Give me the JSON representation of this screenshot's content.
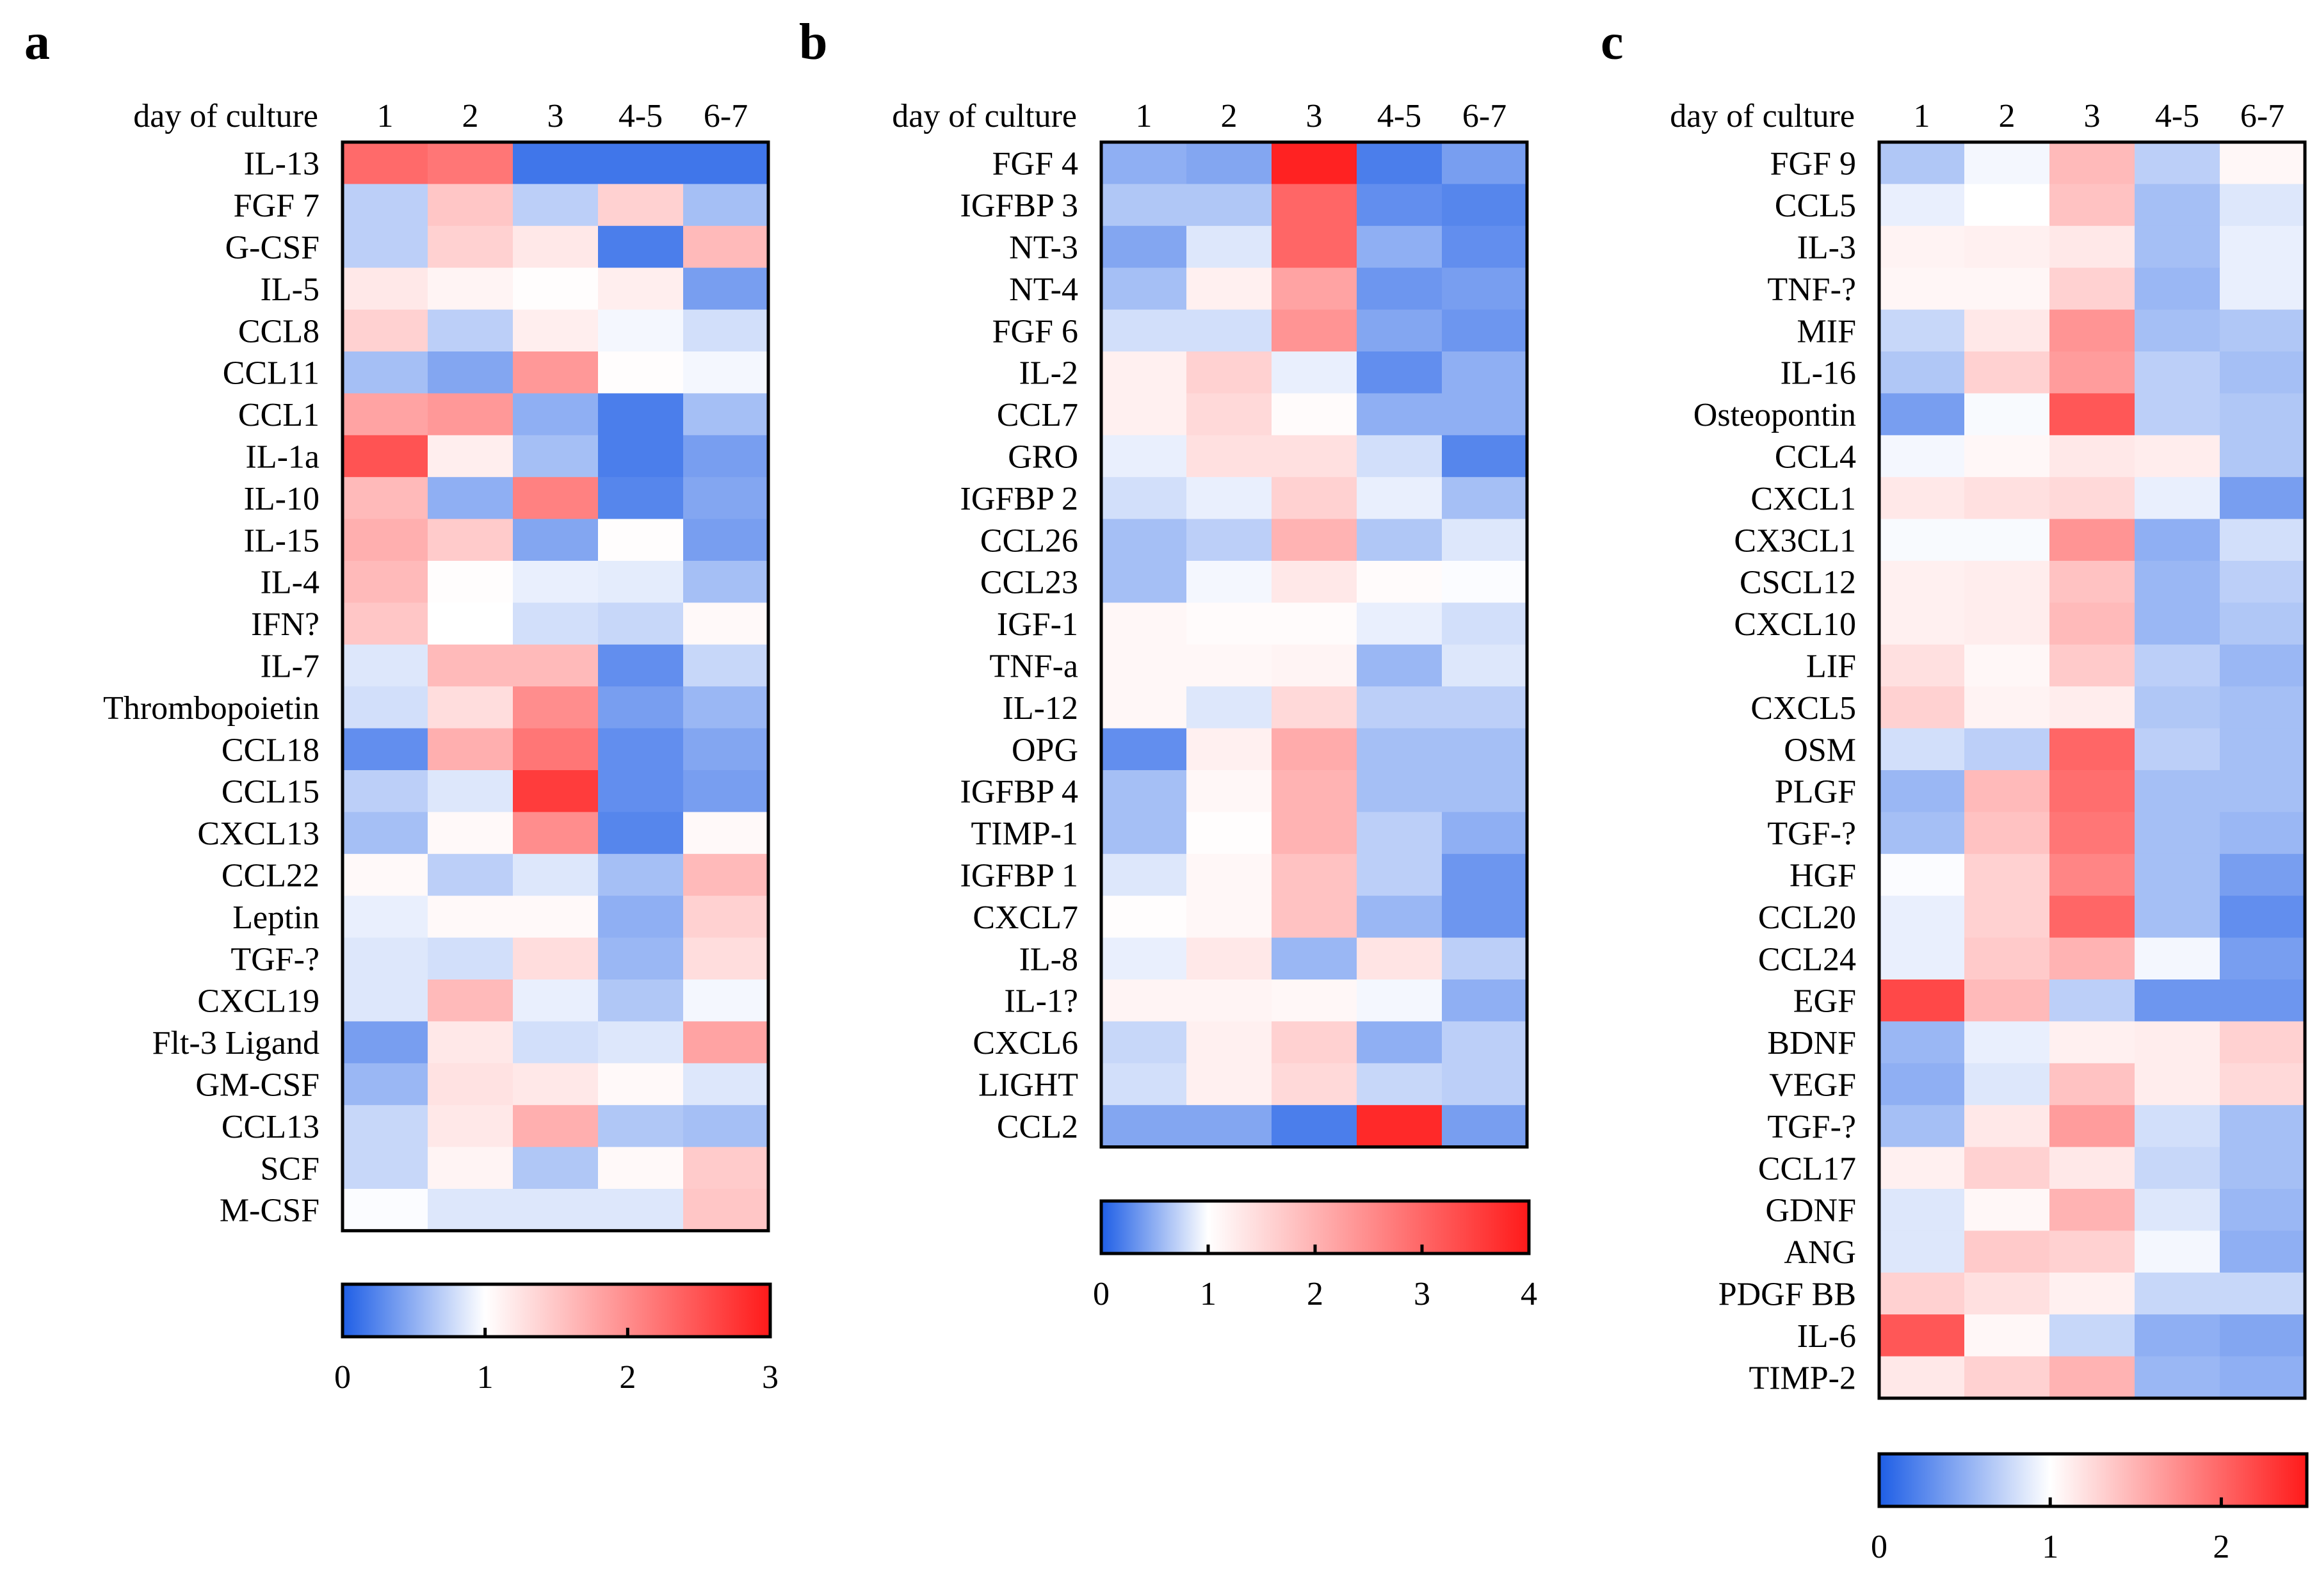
{
  "chart_data": [
    {
      "type": "heatmap",
      "panel": "a",
      "title": "",
      "xlabel": "day of culture",
      "x": [
        "1",
        "2",
        "3",
        "4-5",
        "6-7"
      ],
      "rows": [
        "IL-13",
        "FGF 7",
        "G-CSF",
        "IL-5",
        "CCL8",
        "CCL11",
        "CCL1",
        "IL-1a",
        "IL-10",
        "IL-15",
        "IL-4",
        "IFN?",
        "IL-7",
        "Thrombopoietin",
        "CCL18",
        "CCL15",
        "CXCL13",
        "CCL22",
        "Leptin",
        "TGF-?",
        "CXCL19",
        "Flt-3 Ligand",
        "GM-CSF",
        "CCL13",
        "SCF",
        "M-CSF"
      ],
      "values": [
        [
          2.3,
          2.2,
          0.15,
          0.15,
          0.15
        ],
        [
          0.7,
          1.5,
          0.7,
          1.4,
          0.6
        ],
        [
          0.7,
          1.4,
          1.2,
          0.2,
          1.6
        ],
        [
          1.2,
          1.1,
          1.02,
          1.15,
          0.4
        ],
        [
          1.4,
          0.7,
          1.15,
          0.95,
          0.8
        ],
        [
          0.6,
          0.45,
          1.9,
          1.02,
          0.95
        ],
        [
          1.8,
          1.9,
          0.5,
          0.2,
          0.6
        ],
        [
          2.5,
          1.15,
          0.6,
          0.2,
          0.4
        ],
        [
          1.6,
          0.5,
          2.1,
          0.25,
          0.45
        ],
        [
          1.7,
          1.45,
          0.45,
          1.02,
          0.4
        ],
        [
          1.6,
          1.02,
          0.9,
          0.88,
          0.6
        ],
        [
          1.5,
          1.0,
          0.8,
          0.75,
          1.05
        ],
        [
          0.85,
          1.6,
          1.6,
          0.3,
          0.75
        ],
        [
          0.8,
          1.3,
          2.0,
          0.4,
          0.55
        ],
        [
          0.3,
          1.7,
          2.2,
          0.3,
          0.45
        ],
        [
          0.7,
          0.85,
          2.7,
          0.3,
          0.4
        ],
        [
          0.6,
          1.05,
          2.0,
          0.25,
          1.05
        ],
        [
          1.05,
          0.7,
          0.85,
          0.6,
          1.6
        ],
        [
          0.9,
          1.05,
          1.05,
          0.5,
          1.4
        ],
        [
          0.85,
          0.8,
          1.3,
          0.55,
          1.3
        ],
        [
          0.85,
          1.6,
          0.9,
          0.65,
          0.95
        ],
        [
          0.4,
          1.2,
          0.8,
          0.85,
          1.8
        ],
        [
          0.55,
          1.25,
          1.2,
          1.05,
          0.85
        ],
        [
          0.75,
          1.2,
          1.7,
          0.65,
          0.6
        ],
        [
          0.75,
          1.1,
          0.65,
          1.05,
          1.45
        ],
        [
          0.98,
          0.85,
          0.85,
          0.85,
          1.5
        ]
      ],
      "colorbar": {
        "min": 0,
        "mid": 1,
        "max": 3,
        "ticks": [
          0,
          1,
          2,
          3
        ]
      }
    },
    {
      "type": "heatmap",
      "panel": "b",
      "title": "",
      "xlabel": "day of culture",
      "x": [
        "1",
        "2",
        "3",
        "4-5",
        "6-7"
      ],
      "rows": [
        "FGF 4",
        "IGFBP 3",
        "NT-3",
        "NT-4",
        "FGF 6",
        "IL-2",
        "CCL7",
        "GRO",
        "IGFBP 2",
        "CCL26",
        "CCL23",
        "IGF-1",
        "TNF-a",
        "IL-12",
        "OPG",
        "IGFBP 4",
        "TIMP-1",
        "IGFBP 1",
        "CXCL7",
        "IL-8",
        "IL-1?",
        "CXCL6",
        "LIGHT",
        "CCL2"
      ],
      "values": [
        [
          0.5,
          0.45,
          3.9,
          0.2,
          0.4
        ],
        [
          0.65,
          0.65,
          3.0,
          0.3,
          0.25
        ],
        [
          0.45,
          0.85,
          3.0,
          0.5,
          0.3
        ],
        [
          0.6,
          1.2,
          2.2,
          0.35,
          0.4
        ],
        [
          0.8,
          0.8,
          2.4,
          0.45,
          0.35
        ],
        [
          1.2,
          1.6,
          0.9,
          0.3,
          0.5
        ],
        [
          1.2,
          1.5,
          1.05,
          0.5,
          0.5
        ],
        [
          0.9,
          1.4,
          1.4,
          0.8,
          0.25
        ],
        [
          0.8,
          0.9,
          1.6,
          0.9,
          0.6
        ],
        [
          0.6,
          0.7,
          2.0,
          0.65,
          0.85
        ],
        [
          0.6,
          0.95,
          1.3,
          1.05,
          0.98
        ],
        [
          1.1,
          1.05,
          1.05,
          0.9,
          0.8
        ],
        [
          1.1,
          1.1,
          1.15,
          0.55,
          0.85
        ],
        [
          1.1,
          0.85,
          1.5,
          0.7,
          0.7
        ],
        [
          0.3,
          1.2,
          2.1,
          0.6,
          0.6
        ],
        [
          0.6,
          1.1,
          2.0,
          0.6,
          0.6
        ],
        [
          0.6,
          1.02,
          2.0,
          0.7,
          0.5
        ],
        [
          0.85,
          1.1,
          1.8,
          0.7,
          0.35
        ],
        [
          1.02,
          1.1,
          1.8,
          0.55,
          0.35
        ],
        [
          0.9,
          1.3,
          0.55,
          1.35,
          0.7
        ],
        [
          1.15,
          1.15,
          1.1,
          0.95,
          0.5
        ],
        [
          0.75,
          1.2,
          1.6,
          0.5,
          0.7
        ],
        [
          0.8,
          1.2,
          1.5,
          0.75,
          0.7
        ],
        [
          0.45,
          0.45,
          0.2,
          3.8,
          0.4
        ]
      ],
      "colorbar": {
        "min": 0,
        "mid": 1,
        "max": 4,
        "ticks": [
          0,
          1,
          2,
          3,
          4
        ]
      }
    },
    {
      "type": "heatmap",
      "panel": "c",
      "title": "",
      "xlabel": "day of culture",
      "x": [
        "1",
        "2",
        "3",
        "4-5",
        "6-7"
      ],
      "rows": [
        "FGF 9",
        "CCL5",
        "IL-3",
        "TNF-?",
        "MIF",
        "IL-16",
        "Osteopontin",
        "CCL4",
        "CXCL1",
        "CX3CL1",
        "CSCL12",
        "CXCL10",
        "LIF",
        "CXCL5",
        "OSM",
        "PLGF",
        "TGF-?",
        "HGF",
        "CCL20",
        "CCL24",
        "EGF",
        "BDNF",
        "VEGF",
        "TGF-?",
        "CCL17",
        "GDNF",
        "ANG",
        "PDGF BB",
        "IL-6",
        "TIMP-2"
      ],
      "values": [
        [
          0.65,
          0.95,
          1.45,
          0.7,
          1.05
        ],
        [
          0.9,
          1.0,
          1.4,
          0.6,
          0.85
        ],
        [
          1.08,
          1.1,
          1.15,
          0.6,
          0.9
        ],
        [
          1.06,
          1.06,
          1.3,
          0.55,
          0.9
        ],
        [
          0.75,
          1.15,
          1.7,
          0.6,
          0.65
        ],
        [
          0.65,
          1.3,
          1.65,
          0.7,
          0.6
        ],
        [
          0.4,
          0.97,
          2.1,
          0.7,
          0.65
        ],
        [
          0.95,
          1.05,
          1.15,
          1.12,
          0.65
        ],
        [
          1.15,
          1.2,
          1.25,
          0.9,
          0.4
        ],
        [
          0.97,
          0.97,
          1.7,
          0.5,
          0.8
        ],
        [
          1.1,
          1.12,
          1.4,
          0.55,
          0.7
        ],
        [
          1.1,
          1.12,
          1.45,
          0.55,
          0.65
        ],
        [
          1.2,
          1.05,
          1.35,
          0.7,
          0.55
        ],
        [
          1.3,
          1.08,
          1.12,
          0.65,
          0.6
        ],
        [
          0.8,
          0.7,
          2.0,
          0.7,
          0.6
        ],
        [
          0.55,
          1.45,
          1.95,
          0.6,
          0.6
        ],
        [
          0.6,
          1.4,
          1.9,
          0.6,
          0.55
        ],
        [
          0.98,
          1.3,
          1.8,
          0.6,
          0.4
        ],
        [
          0.9,
          1.3,
          2.0,
          0.6,
          0.3
        ],
        [
          0.9,
          1.35,
          1.5,
          0.95,
          0.4
        ],
        [
          2.2,
          1.45,
          0.7,
          0.35,
          0.35
        ],
        [
          0.55,
          0.9,
          1.1,
          1.12,
          1.3
        ],
        [
          0.5,
          0.85,
          1.4,
          1.12,
          1.25
        ],
        [
          0.6,
          1.15,
          1.65,
          0.8,
          0.6
        ],
        [
          1.1,
          1.3,
          1.15,
          0.75,
          0.6
        ],
        [
          0.85,
          1.05,
          1.5,
          0.85,
          0.55
        ],
        [
          0.85,
          1.35,
          1.3,
          0.95,
          0.5
        ],
        [
          1.3,
          1.2,
          1.1,
          0.75,
          0.75
        ],
        [
          2.1,
          1.05,
          0.75,
          0.5,
          0.45
        ],
        [
          1.15,
          1.3,
          1.5,
          0.55,
          0.5
        ]
      ],
      "colorbar": {
        "min": 0,
        "mid": 1,
        "max": 2.5,
        "ticks": [
          0,
          1,
          2
        ]
      }
    }
  ],
  "colors": {
    "low": "#1e5ee6",
    "mid": "#ffffff",
    "high": "#ff1a1a",
    "frame": "#000000"
  }
}
